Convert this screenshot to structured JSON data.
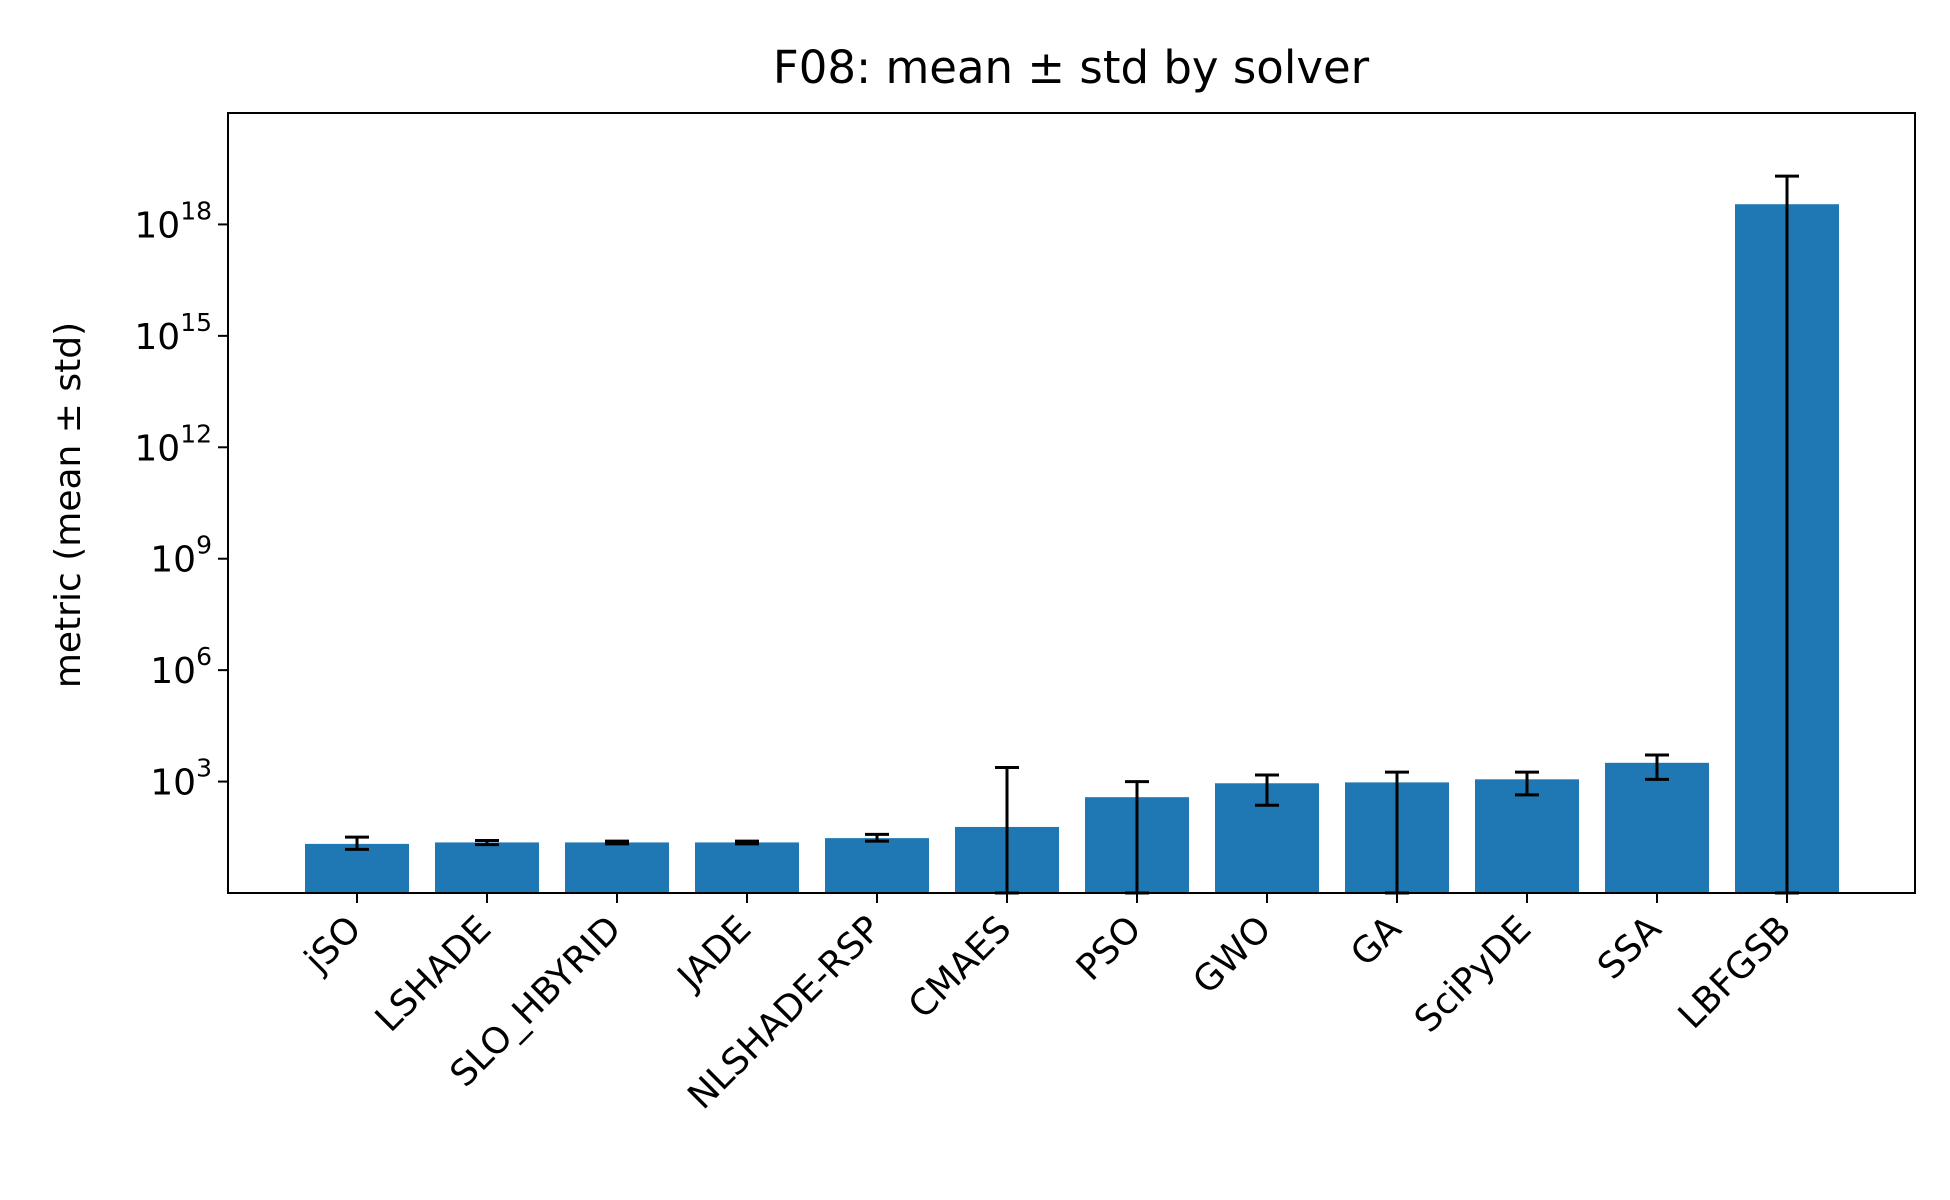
{
  "chart_data": {
    "type": "bar",
    "title": "F08: mean ± std by solver",
    "xlabel": "",
    "ylabel": "metric (mean ± std)",
    "yscale": "log",
    "ylim": [
      1.0,
      1e+21
    ],
    "yticks": [
      {
        "base": "10",
        "exp": "3",
        "value": 1000
      },
      {
        "base": "10",
        "exp": "6",
        "value": 1000000
      },
      {
        "base": "10",
        "exp": "9",
        "value": 1000000000
      },
      {
        "base": "10",
        "exp": "12",
        "value": 1000000000000
      },
      {
        "base": "10",
        "exp": "15",
        "value": 1000000000000000
      },
      {
        "base": "10",
        "exp": "18",
        "value": 1000000000000000000
      }
    ],
    "categories": [
      "jSO",
      "LSHADE",
      "SLO_HBYRID",
      "JADE",
      "NLSHADE-RSP",
      "CMAES",
      "PSO",
      "GWO",
      "GA",
      "SciPyDE",
      "SSA",
      "LBFGSB"
    ],
    "values": [
      21,
      23,
      23,
      23,
      30,
      60,
      380,
      900,
      950,
      1150,
      3200,
      3.5e+18
    ],
    "err_low": [
      15,
      20,
      21,
      21,
      25,
      1,
      1,
      230,
      1,
      440,
      1150,
      1
    ],
    "err_high": [
      32,
      26,
      25,
      25,
      38,
      2400,
      1000,
      1500,
      1800,
      1800,
      5200,
      2e+19
    ],
    "bar_color": "#1f77b4",
    "error_color": "#000000",
    "grid": false,
    "legend": "none"
  }
}
